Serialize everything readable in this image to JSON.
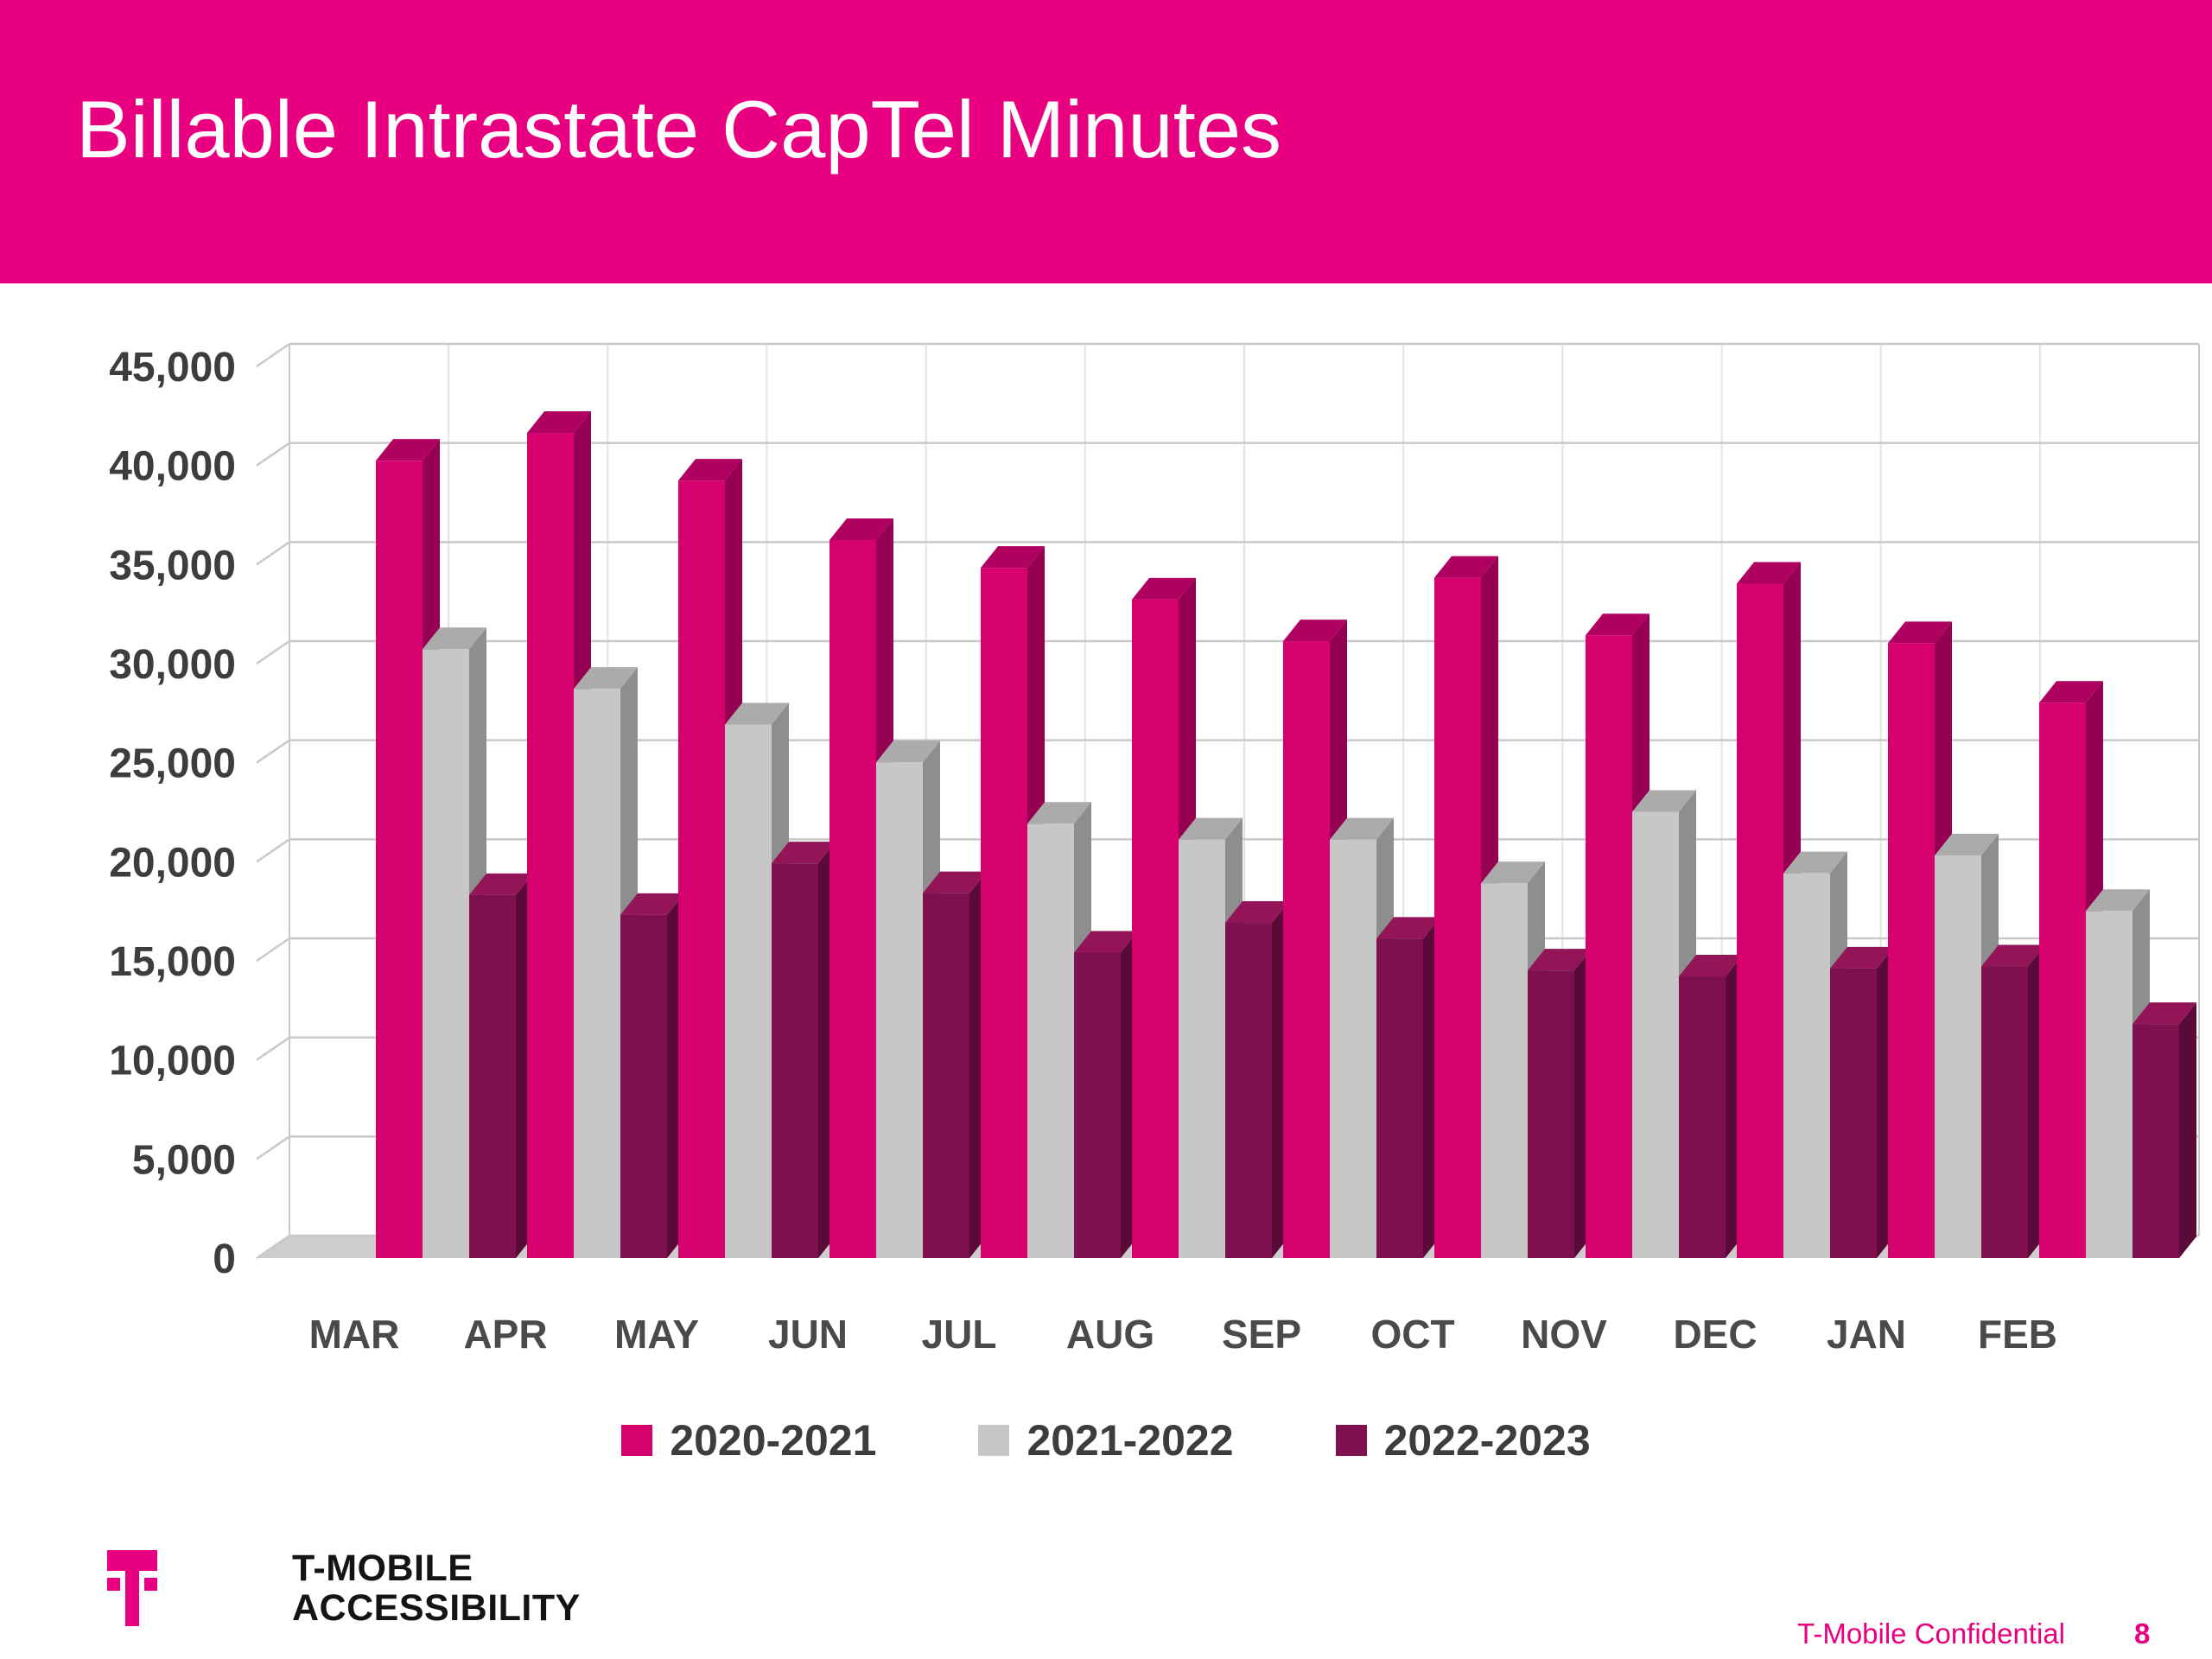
{
  "header": {
    "title": "Billable Intrastate CapTel Minutes"
  },
  "colors": {
    "brand_magenta": "#E80080",
    "gridline": "#C9C9C9",
    "separator": "#E3E3E3",
    "floor": "#CDCDCD",
    "axis_label": "#3d3d3d",
    "category_label": "#4a4a4a"
  },
  "chart_data": {
    "type": "bar",
    "style": "3d-clustered-column",
    "title": "Billable Intrastate CapTel Minutes",
    "xlabel": "",
    "ylabel": "",
    "ylim": [
      0,
      45000
    ],
    "ytick_step": 5000,
    "grid": true,
    "legend_position": "bottom",
    "categories": [
      "MAR",
      "APR",
      "MAY",
      "JUN",
      "JUL",
      "AUG",
      "SEP",
      "OCT",
      "NOV",
      "DEC",
      "JAN",
      "FEB"
    ],
    "series": [
      {
        "name": "2020-2021",
        "color_front": "#D6006E",
        "color_top": "#B00060",
        "color_side": "#960052",
        "values": [
          40200,
          41600,
          39200,
          36200,
          34800,
          33200,
          31100,
          34300,
          31400,
          34000,
          31000,
          28000
        ]
      },
      {
        "name": "2021-2022",
        "color_front": "#C7C7C7",
        "color_top": "#ABABAB",
        "color_side": "#8E8E8E",
        "values": [
          30700,
          28700,
          26900,
          25000,
          21900,
          21100,
          21100,
          18900,
          22500,
          19400,
          20300,
          17500
        ]
      },
      {
        "name": "2022-2023",
        "color_front": "#7E1050",
        "color_top": "#931457",
        "color_side": "#5A0938",
        "values": [
          18300,
          17300,
          19900,
          18400,
          15400,
          16900,
          16100,
          14500,
          14200,
          14600,
          14700,
          11800
        ]
      }
    ]
  },
  "legend": {
    "items": [
      {
        "label": "2020-2021",
        "color": "#D6006E"
      },
      {
        "label": "2021-2022",
        "color": "#C7C7C7"
      },
      {
        "label": "2022-2023",
        "color": "#7E1050"
      }
    ]
  },
  "footer": {
    "brand_line1": "T-MOBILE",
    "brand_line2": "ACCESSIBILITY",
    "confidential": "T-Mobile Confidential",
    "page_number": "8",
    "logo_icon": "t-mobile-telekom-t-icon"
  }
}
